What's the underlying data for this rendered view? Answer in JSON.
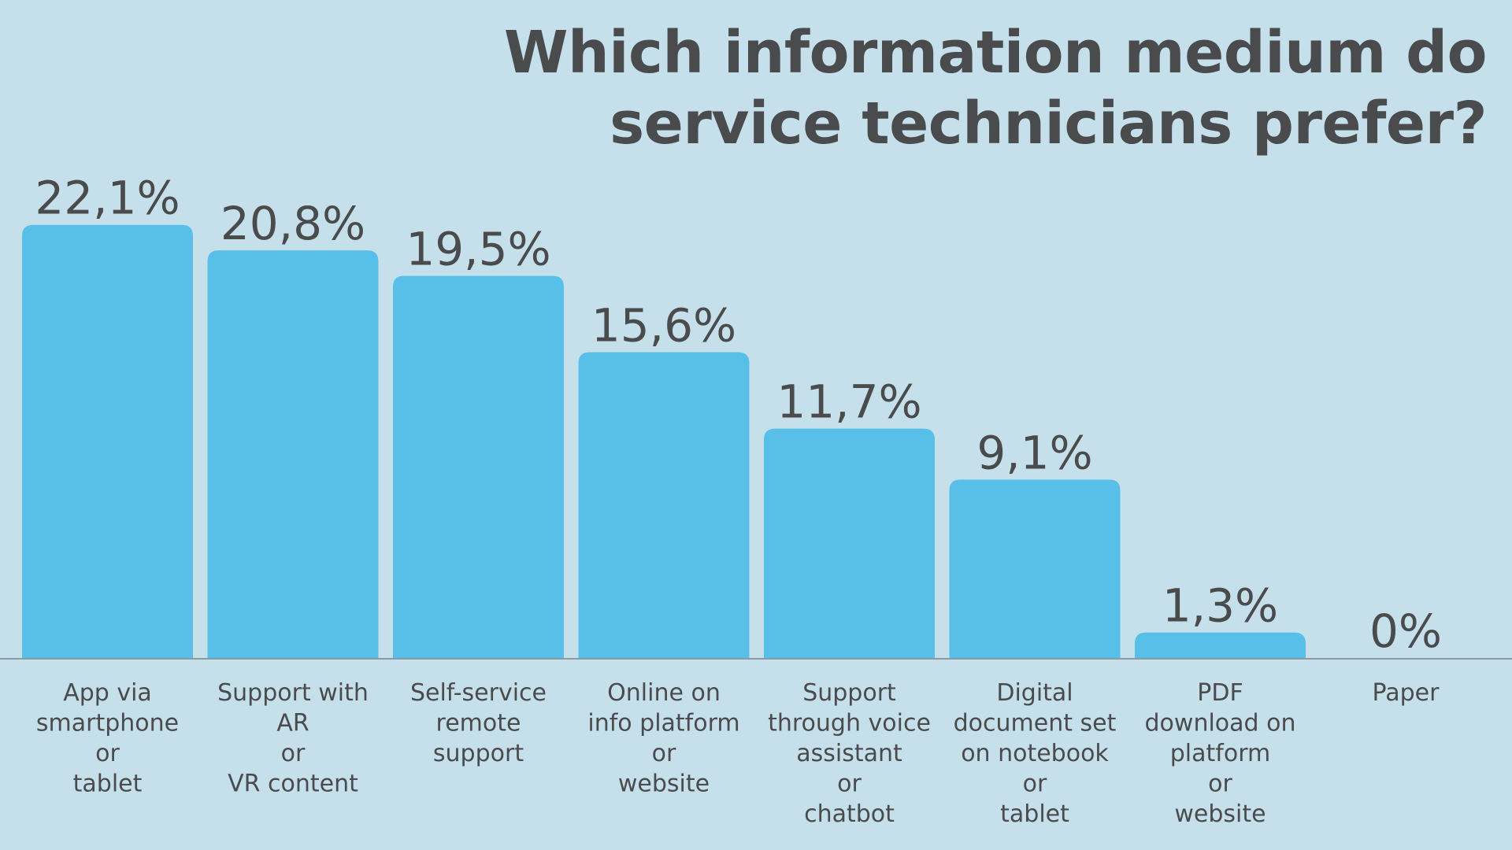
{
  "chart_data": {
    "type": "bar",
    "title": [
      "Which information medium do",
      "service technicians prefer?"
    ],
    "xlabel": "",
    "ylabel": "",
    "ylim": [
      0,
      25
    ],
    "grid": false,
    "legend": "none",
    "bar_color": "#58c0e8",
    "categories": [
      [
        "App via",
        "smartphone",
        "or",
        "tablet"
      ],
      [
        "Support with",
        "AR",
        "or",
        "VR content"
      ],
      [
        "Self-service",
        "remote",
        "support"
      ],
      [
        "Online on",
        "info platform",
        "or",
        "website"
      ],
      [
        "Support",
        "through voice",
        "assistant",
        "or",
        "chatbot"
      ],
      [
        "Digital",
        "document set",
        "on notebook",
        "or",
        "tablet"
      ],
      [
        "PDF",
        "download on",
        "platform",
        "or",
        "website"
      ],
      [
        "Paper"
      ]
    ],
    "values": [
      22.1,
      20.8,
      19.5,
      15.6,
      11.7,
      9.1,
      1.3,
      0
    ],
    "value_labels": [
      "22,1%",
      "20,8%",
      "19,5%",
      "15,6%",
      "11,7%",
      "9,1%",
      "1,3%",
      "0%"
    ]
  }
}
